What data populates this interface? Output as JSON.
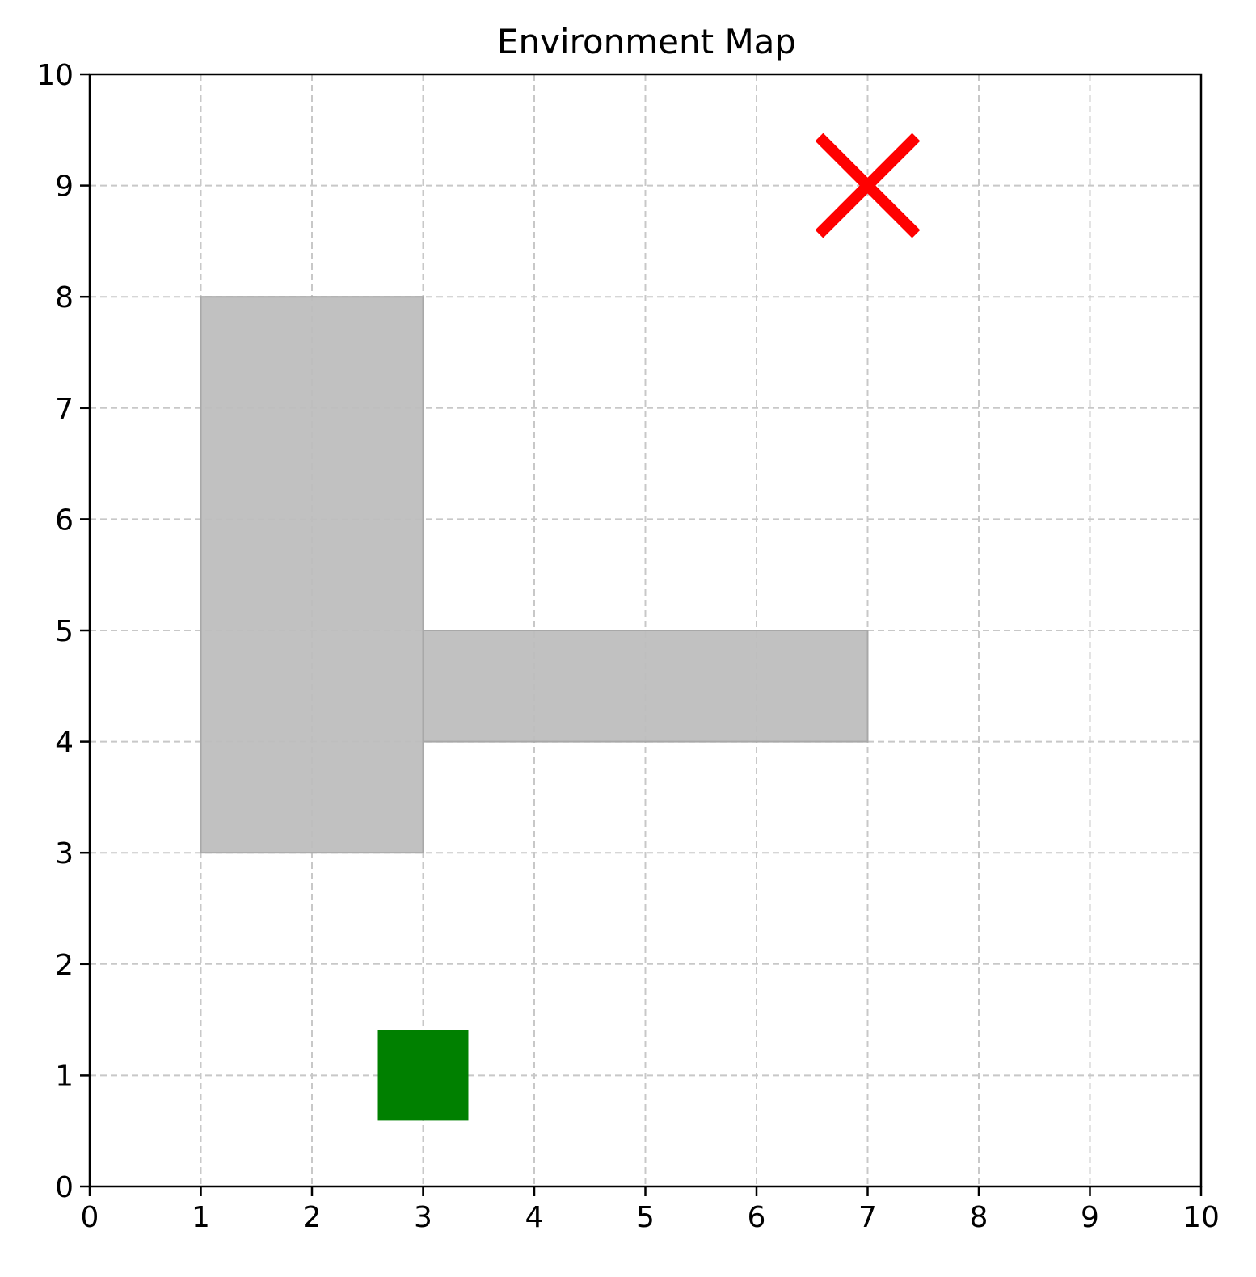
{
  "chart_data": {
    "type": "scatter",
    "title": "Environment Map",
    "xlabel": "",
    "ylabel": "",
    "xlim": [
      0,
      10
    ],
    "ylim": [
      0,
      10
    ],
    "xticks": [
      "0",
      "1",
      "2",
      "3",
      "4",
      "5",
      "6",
      "7",
      "8",
      "9",
      "10"
    ],
    "yticks": [
      "0",
      "1",
      "2",
      "3",
      "4",
      "5",
      "6",
      "7",
      "8",
      "9",
      "10"
    ],
    "grid": true,
    "obstacles": [
      {
        "x0": 1,
        "x1": 3,
        "y0": 3,
        "y1": 8,
        "color": "#bebebe"
      },
      {
        "x0": 3,
        "x1": 7,
        "y0": 4,
        "y1": 5,
        "color": "#bebebe"
      }
    ],
    "markers": [
      {
        "shape": "square",
        "x": 3,
        "y": 1,
        "color": "#008000"
      },
      {
        "shape": "x",
        "x": 7,
        "y": 9,
        "color": "#ff0000"
      }
    ]
  }
}
